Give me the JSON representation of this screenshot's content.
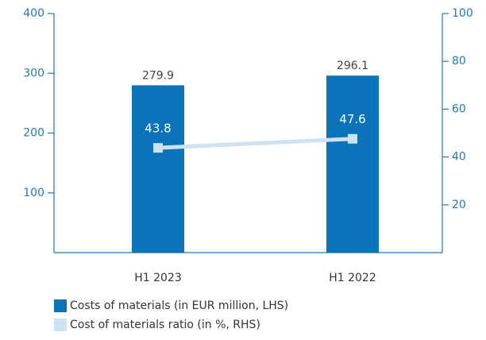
{
  "chart_data": {
    "type": "bar",
    "categories": [
      "H1 2023",
      "H1 2022"
    ],
    "series": [
      {
        "name": "Costs of materials (in EUR million, LHS)",
        "type": "bar",
        "color": "#0a73b9",
        "values": [
          279.9,
          296.1
        ]
      },
      {
        "name": "Cost of materials ratio (in %, RHS)",
        "type": "line",
        "axis": "y2",
        "color": "#cde2f2",
        "values": [
          43.8,
          47.6
        ]
      }
    ],
    "ylim": [
      0,
      400
    ],
    "yticks": [
      100,
      200,
      300,
      400
    ],
    "y2lim": [
      0,
      100
    ],
    "y2ticks": [
      20,
      40,
      60,
      80,
      100
    ]
  }
}
